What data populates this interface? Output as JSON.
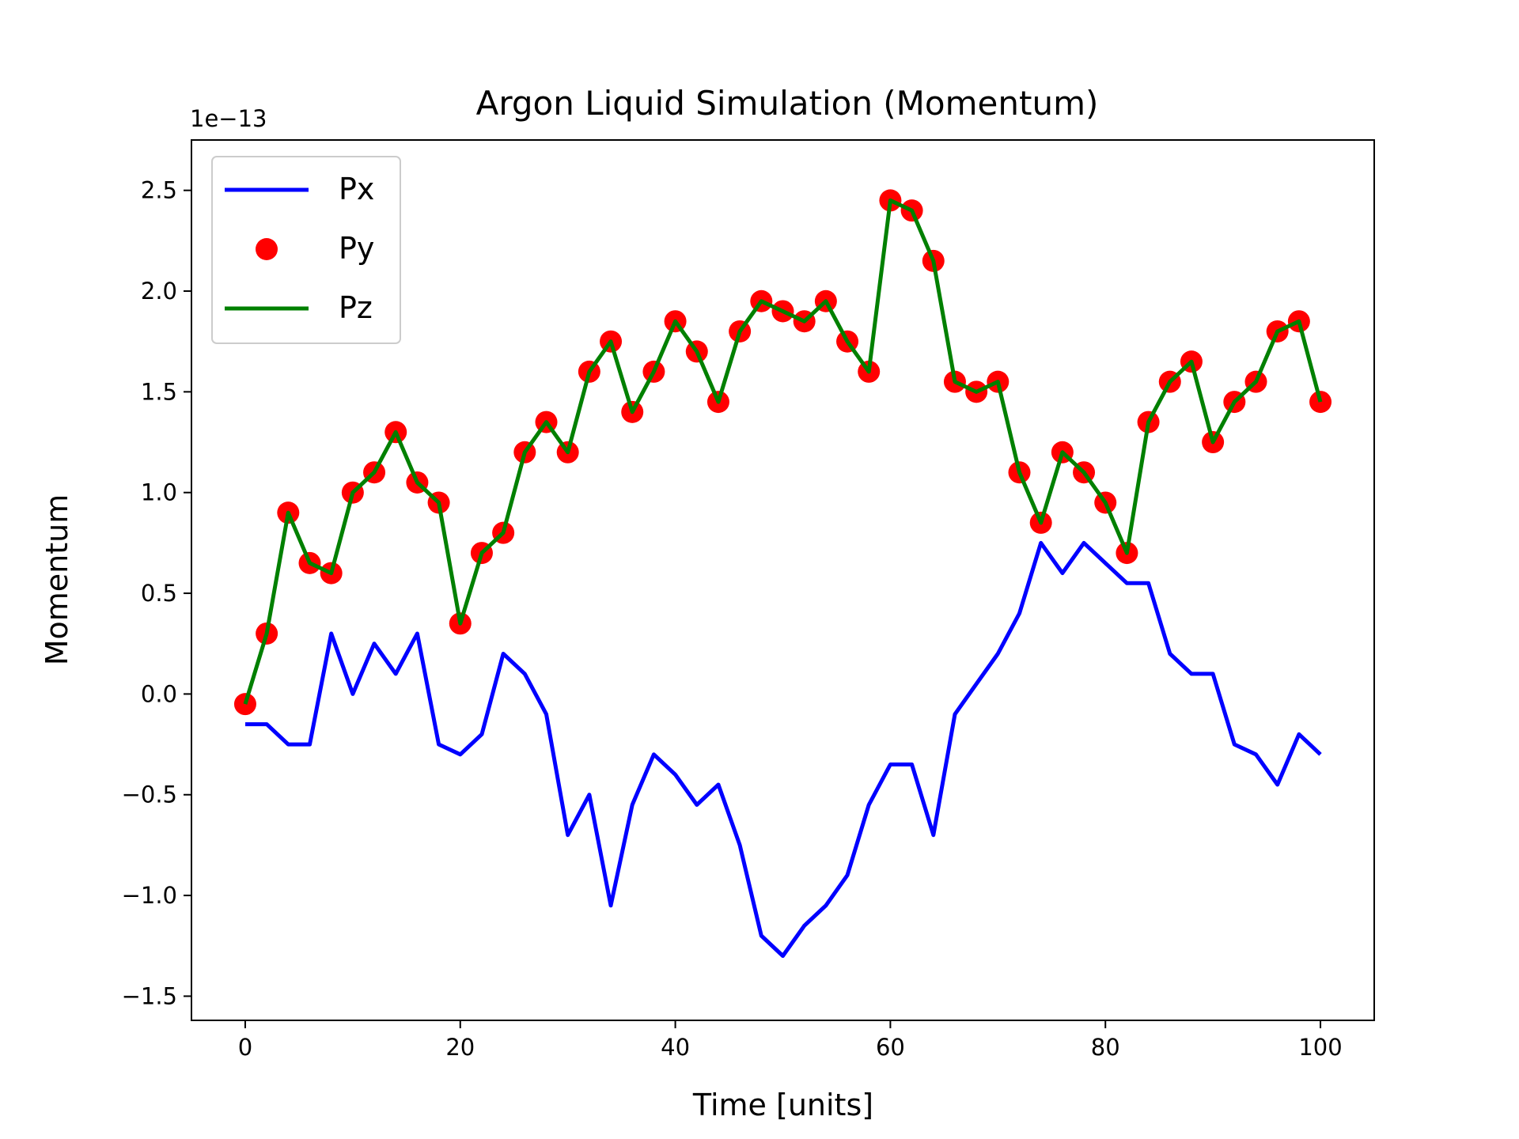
{
  "chart_data": {
    "type": "line",
    "title": "Argon Liquid Simulation (Momentum)",
    "xlabel": "Time [units]",
    "ylabel": "Momentum",
    "offset_label": "1e−13",
    "xlim": [
      -5,
      105
    ],
    "ylim": [
      -1.62,
      2.75
    ],
    "xticks": [
      0,
      20,
      40,
      60,
      80,
      100
    ],
    "xtick_labels": [
      "0",
      "20",
      "40",
      "60",
      "80",
      "100"
    ],
    "yticks": [
      -1.5,
      -1.0,
      -0.5,
      0.0,
      0.5,
      1.0,
      1.5,
      2.0,
      2.5
    ],
    "ytick_labels": [
      "−1.5",
      "−1.0",
      "−0.5",
      "0.0",
      "0.5",
      "1.0",
      "1.5",
      "2.0",
      "2.5"
    ],
    "grid": false,
    "legend_position": "top-left",
    "x": [
      0,
      2,
      4,
      6,
      8,
      10,
      12,
      14,
      16,
      18,
      20,
      22,
      24,
      26,
      28,
      30,
      32,
      34,
      36,
      38,
      40,
      42,
      44,
      46,
      48,
      50,
      52,
      54,
      56,
      58,
      60,
      62,
      64,
      66,
      68,
      70,
      72,
      74,
      76,
      78,
      80,
      82,
      84,
      86,
      88,
      90,
      92,
      94,
      96,
      98,
      100
    ],
    "series": [
      {
        "name": "Px",
        "style": "line",
        "color": "#0000ff",
        "values": [
          -0.15,
          -0.15,
          -0.25,
          -0.25,
          0.3,
          0.0,
          0.25,
          0.1,
          0.3,
          -0.25,
          -0.3,
          -0.2,
          0.2,
          0.1,
          -0.1,
          -0.7,
          -0.5,
          -1.05,
          -0.55,
          -0.3,
          -0.4,
          -0.55,
          -0.45,
          -0.75,
          -1.2,
          -1.3,
          -1.15,
          -1.05,
          -0.9,
          -0.55,
          -0.35,
          -0.35,
          -0.7,
          -0.1,
          0.05,
          0.2,
          0.4,
          0.75,
          0.6,
          0.75,
          0.65,
          0.55,
          0.55,
          0.2,
          0.1,
          0.1,
          -0.25,
          -0.3,
          -0.45,
          -0.2,
          -0.3
        ]
      },
      {
        "name": "Py",
        "style": "markers",
        "color": "#ff0000",
        "values": [
          -0.05,
          0.3,
          0.9,
          0.65,
          0.6,
          1.0,
          1.1,
          1.3,
          1.05,
          0.95,
          0.35,
          0.7,
          0.8,
          1.2,
          1.35,
          1.2,
          1.6,
          1.75,
          1.4,
          1.6,
          1.85,
          1.7,
          1.45,
          1.8,
          1.95,
          1.9,
          1.85,
          1.95,
          1.75,
          1.6,
          2.45,
          2.4,
          2.15,
          1.55,
          1.5,
          1.55,
          1.1,
          0.85,
          1.2,
          1.1,
          0.95,
          0.7,
          1.35,
          1.55,
          1.65,
          1.25,
          1.45,
          1.55,
          1.8,
          1.85,
          1.45
        ]
      },
      {
        "name": "Pz",
        "style": "line",
        "color": "#008000",
        "values": [
          -0.05,
          0.3,
          0.9,
          0.65,
          0.6,
          1.0,
          1.1,
          1.3,
          1.05,
          0.95,
          0.35,
          0.7,
          0.8,
          1.2,
          1.35,
          1.2,
          1.6,
          1.75,
          1.4,
          1.6,
          1.85,
          1.7,
          1.45,
          1.8,
          1.95,
          1.9,
          1.85,
          1.95,
          1.75,
          1.6,
          2.45,
          2.4,
          2.15,
          1.55,
          1.5,
          1.55,
          1.1,
          0.85,
          1.2,
          1.1,
          0.95,
          0.7,
          1.35,
          1.55,
          1.65,
          1.25,
          1.45,
          1.55,
          1.8,
          1.85,
          1.45
        ]
      }
    ]
  }
}
